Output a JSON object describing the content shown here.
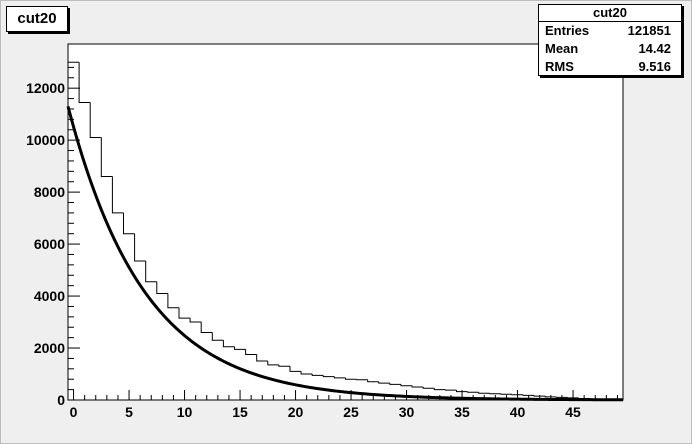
{
  "title": "cut20",
  "stats": {
    "title": "cut20",
    "rows": [
      {
        "key": "Entries",
        "value": "121851"
      },
      {
        "key": "Mean",
        "value": "14.42"
      },
      {
        "key": "RMS",
        "value": "9.516"
      }
    ]
  },
  "colors": {
    "background": "#efefef",
    "frame": "#ffffff",
    "line": "#000000"
  },
  "chart_data": {
    "type": "histogram",
    "title": "cut20",
    "xlabel": "",
    "ylabel": "",
    "xlim": [
      -0.5,
      49.5
    ],
    "ylim": [
      0,
      13700
    ],
    "xticks": [
      0,
      5,
      10,
      15,
      20,
      25,
      30,
      35,
      40,
      45
    ],
    "yticks": [
      0,
      2000,
      4000,
      6000,
      8000,
      10000,
      12000
    ],
    "bin_edges": [
      -0.5,
      0.5,
      1.5,
      2.5,
      3.5,
      4.5,
      5.5,
      6.5,
      7.5,
      8.5,
      9.5,
      10.5,
      11.5,
      12.5,
      13.5,
      14.5,
      15.5,
      16.5,
      17.5,
      18.5,
      19.5,
      20.5,
      21.5,
      22.5,
      23.5,
      24.5,
      25.5,
      26.5,
      27.5,
      28.5,
      29.5,
      30.5,
      31.5,
      32.5,
      33.5,
      34.5,
      35.5,
      36.5,
      37.5,
      38.5,
      39.5,
      40.5,
      41.5,
      42.5,
      43.5,
      44.5,
      45.5,
      46.5,
      47.5,
      48.5,
      49.5
    ],
    "counts": [
      13000,
      11450,
      10100,
      8600,
      7200,
      6400,
      5350,
      4550,
      4100,
      3550,
      3150,
      3000,
      2600,
      2300,
      2050,
      1950,
      1750,
      1500,
      1350,
      1300,
      1100,
      1000,
      950,
      900,
      850,
      800,
      780,
      700,
      650,
      600,
      550,
      500,
      450,
      400,
      380,
      320,
      300,
      260,
      240,
      220,
      200,
      180,
      150,
      120,
      100,
      80,
      60,
      40,
      30,
      20
    ],
    "fit": {
      "type": "exponential",
      "amplitude": 11300,
      "decay_constant": 0.1445,
      "x_range": [
        -0.5,
        49.5
      ]
    },
    "grid": false
  }
}
